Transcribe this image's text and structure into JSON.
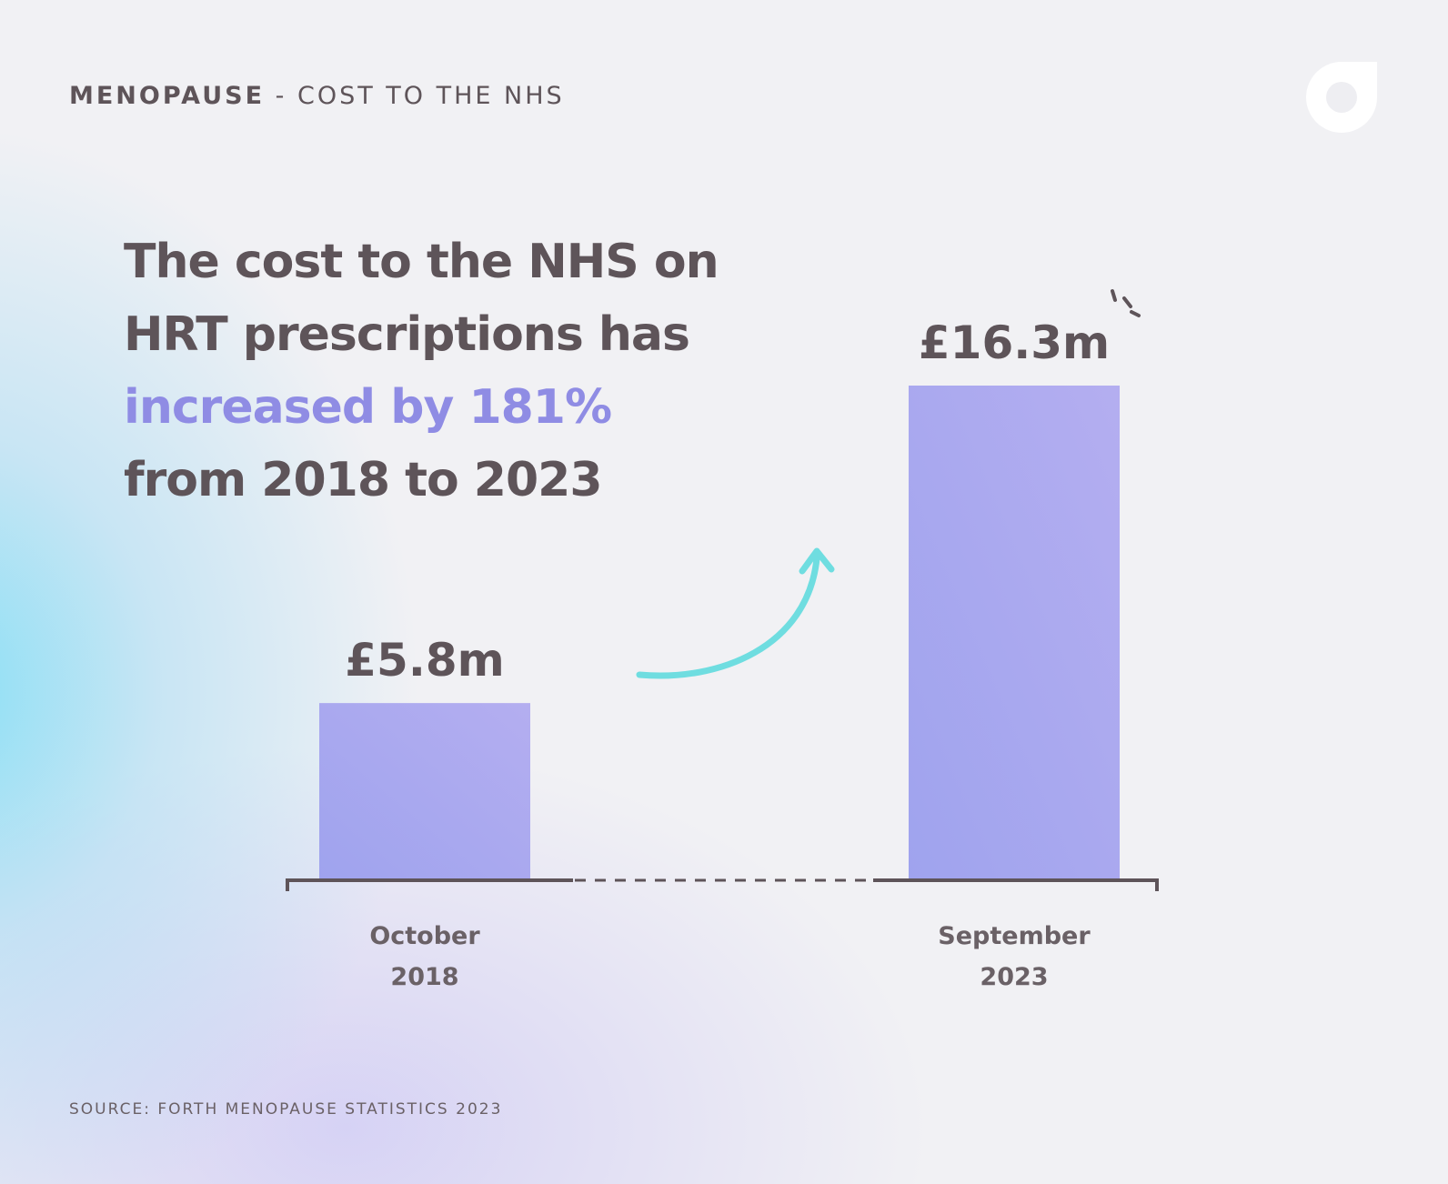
{
  "header": {
    "eyebrow_bold": "MENOPAUSE",
    "eyebrow_rest": " - COST TO THE NHS"
  },
  "headline": {
    "line1": "The cost to the NHS on",
    "line2": "HRT prescriptions has",
    "highlight": "increased by 181%",
    "line4": "from 2018 to 2023"
  },
  "logo": {
    "icon": "drop-logo-icon"
  },
  "colors": {
    "text": "#5e5459",
    "accent": "#8f8ce4",
    "bar": "#a9a6ee",
    "arrow": "#6fdde0",
    "axis": "#5e5459"
  },
  "chart_data": {
    "type": "bar",
    "title": "",
    "xlabel": "",
    "ylabel": "",
    "categories": [
      "October 2018",
      "September 2023"
    ],
    "category_lines": [
      [
        "October",
        "2018"
      ],
      [
        "September",
        "2023"
      ]
    ],
    "values": [
      5.8,
      16.3
    ],
    "value_labels": [
      "£5.8m",
      "£16.3m"
    ],
    "unit": "£m",
    "ylim": [
      0,
      16.3
    ],
    "grid": false,
    "legend": "none",
    "annotation": "upward arrow between bars"
  },
  "footer": {
    "source": "SOURCE: FORTH MENOPAUSE STATISTICS 2023"
  }
}
